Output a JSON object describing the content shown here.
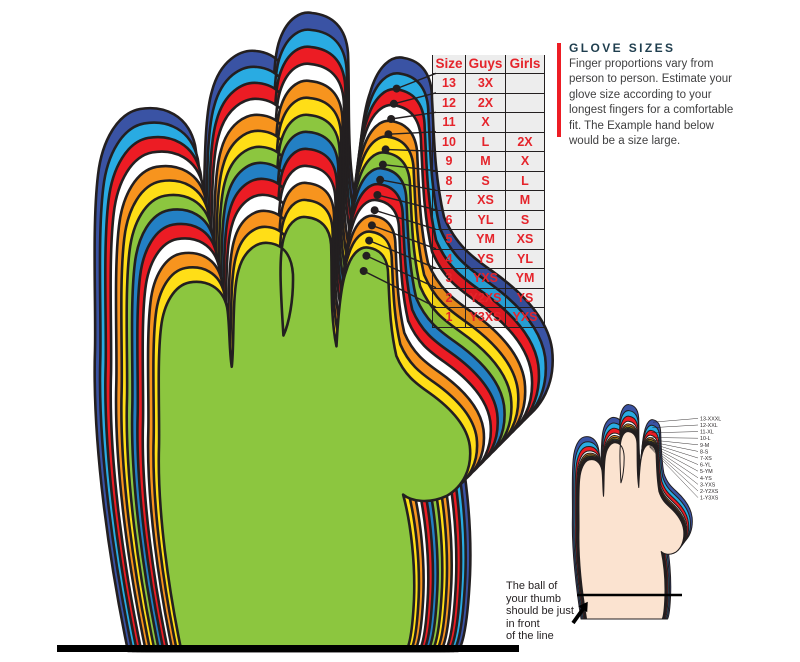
{
  "info_panel": {
    "heading": "GLOVE SIZES",
    "body": "Finger proportions vary from\nperson to person. Estimate your\nglove size according to your\nlongest fingers for a comfortable\nfit. The Example hand below\nwould be a size large.",
    "accent_color": "#ed1c24",
    "heading_color": "#1f3e4e"
  },
  "size_table": {
    "columns": [
      "Size",
      "Guys",
      "Girls"
    ],
    "rows": [
      [
        "13",
        "3X",
        ""
      ],
      [
        "12",
        "2X",
        ""
      ],
      [
        "11",
        "X",
        ""
      ],
      [
        "10",
        "L",
        "2X"
      ],
      [
        "9",
        "M",
        "X"
      ],
      [
        "8",
        "S",
        "L"
      ],
      [
        "7",
        "XS",
        "M"
      ],
      [
        "6",
        "YL",
        "S"
      ],
      [
        "5",
        "YM",
        "XS"
      ],
      [
        "4",
        "YS",
        "YL"
      ],
      [
        "3",
        "YXS",
        "YM"
      ],
      [
        "2",
        "Y2XS",
        "YS"
      ],
      [
        "1",
        "Y3XS",
        "YXS"
      ]
    ],
    "text_color": "#e5242b",
    "grid_color": "#231f20"
  },
  "glove_layers": [
    {
      "size": 13,
      "color": "#3a53a4",
      "label": "13-XXXL"
    },
    {
      "size": 12,
      "color": "#29abe2",
      "label": "12-XXL"
    },
    {
      "size": 11,
      "color": "#ec1c24",
      "label": "11-XL"
    },
    {
      "size": 10,
      "color": "#ffffff",
      "label": "10-L"
    },
    {
      "size": 9,
      "color": "#f7941e",
      "label": "9-M"
    },
    {
      "size": 8,
      "color": "#ffde17",
      "label": "8-S"
    },
    {
      "size": 7,
      "color": "#8cc63f",
      "label": "7-XS"
    },
    {
      "size": 6,
      "color": "#2380c4",
      "label": "6-YL"
    },
    {
      "size": 5,
      "color": "#ec1c24",
      "label": "5-YM"
    },
    {
      "size": 4,
      "color": "#ffffff",
      "label": "4-YS"
    },
    {
      "size": 3,
      "color": "#f7941e",
      "label": "3-YXS"
    },
    {
      "size": 2,
      "color": "#ffde17",
      "label": "2-Y2XS"
    },
    {
      "size": 1,
      "color": "#8cc63f",
      "label": "1-Y3XS"
    }
  ],
  "example_hand": {
    "note": "The ball of\nyour thumb\nshould be just\nin front\nof the line",
    "skin_color": "#fbe3d0"
  },
  "outline_color": "#231f20",
  "baseline_color": "#000000"
}
